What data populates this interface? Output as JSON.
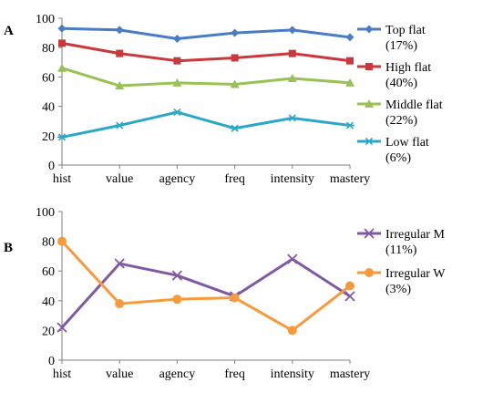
{
  "chart_data": [
    {
      "panel_label": "A",
      "type": "line",
      "categories": [
        "hist",
        "value",
        "agency",
        "freq",
        "intensity",
        "mastery"
      ],
      "ylim": [
        0,
        100
      ],
      "yticks": [
        0,
        20,
        40,
        60,
        80,
        100
      ],
      "grid": false,
      "legend_position": "right",
      "series": [
        {
          "name": "Top flat",
          "pct": "(17%)",
          "color": "#4A7CC4",
          "marker": "diamond",
          "values": [
            93,
            92,
            86,
            90,
            92,
            87
          ]
        },
        {
          "name": "High flat",
          "pct": "(40%)",
          "color": "#C9393B",
          "marker": "square",
          "values": [
            83,
            76,
            71,
            73,
            76,
            71
          ]
        },
        {
          "name": "Middle flat",
          "pct": "(22%)",
          "color": "#98C254",
          "marker": "triangle",
          "values": [
            66,
            54,
            56,
            55,
            59,
            56
          ]
        },
        {
          "name": "Low flat",
          "pct": "(6%)",
          "color": "#2BA8C8",
          "marker": "asterisk",
          "values": [
            19,
            27,
            36,
            25,
            32,
            27
          ]
        }
      ]
    },
    {
      "panel_label": "B",
      "type": "line",
      "categories": [
        "hist",
        "value",
        "agency",
        "freq",
        "intensity",
        "mastery"
      ],
      "ylim": [
        0,
        100
      ],
      "yticks": [
        0,
        20,
        40,
        60,
        80,
        100
      ],
      "grid": false,
      "legend_position": "right",
      "series": [
        {
          "name": "Irregular M",
          "pct": "(11%)",
          "color": "#8059A6",
          "marker": "x",
          "values": [
            22,
            65,
            57,
            43,
            68,
            43
          ]
        },
        {
          "name": "Irregular W",
          "pct": "(3%)",
          "color": "#F79A3C",
          "marker": "circle",
          "values": [
            80,
            38,
            41,
            42,
            20,
            50
          ]
        }
      ]
    }
  ]
}
